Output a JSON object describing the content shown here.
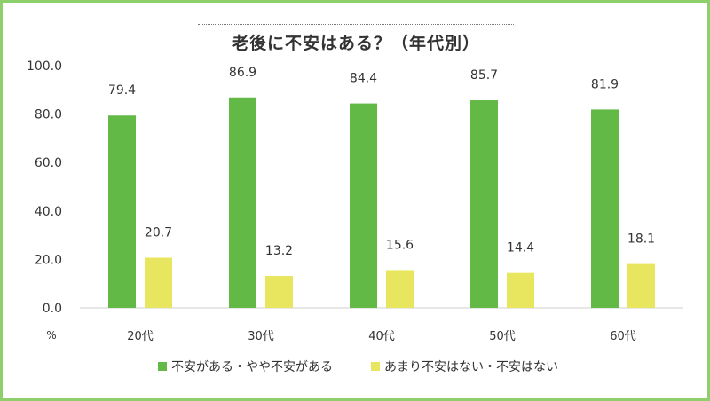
{
  "chart_data": {
    "type": "bar",
    "title": "老後に不安はある？（年代別）",
    "categories": [
      "20代",
      "30代",
      "40代",
      "50代",
      "60代"
    ],
    "series": [
      {
        "name": "不安がある・やや不安がある",
        "values": [
          79.4,
          86.9,
          84.4,
          85.7,
          81.9
        ],
        "labels": [
          "79.4",
          "86.9",
          "84.4",
          "85.7",
          "81.9"
        ],
        "color": "#63b945"
      },
      {
        "name": "あまり不安はない・不安はない",
        "values": [
          20.7,
          13.2,
          15.6,
          14.4,
          18.1
        ],
        "labels": [
          "20.7",
          "13.2",
          "15.6",
          "14.4",
          "18.1"
        ],
        "color": "#e8e65f"
      }
    ],
    "ylabel": "%",
    "ylim": [
      0,
      100
    ],
    "yticks": [
      "0.0",
      "20.0",
      "40.0",
      "60.0",
      "80.0",
      "100.0"
    ],
    "grid": false,
    "legend": "bottom"
  }
}
